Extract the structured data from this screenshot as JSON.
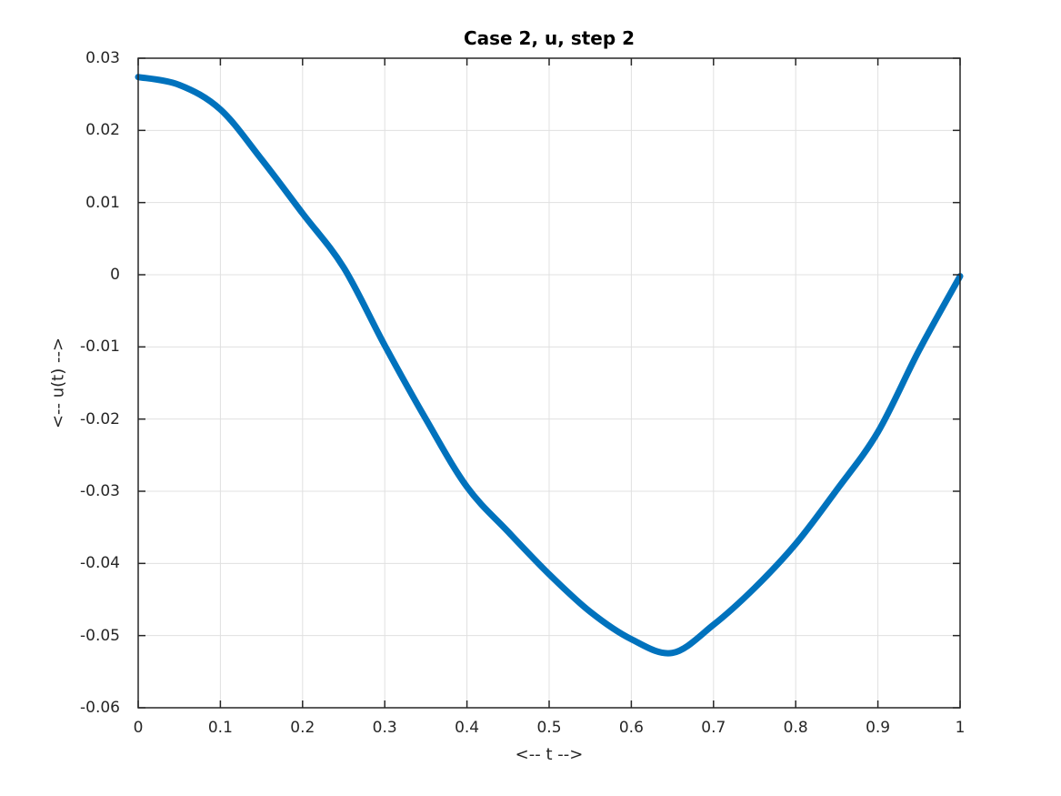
{
  "figure": {
    "background": "#ffffff"
  },
  "chart_data": {
    "type": "line",
    "title": "Case 2, u, step 2",
    "xlabel": "<-- t -->",
    "ylabel": "<-- u(t) -->",
    "xlim": [
      0,
      1
    ],
    "ylim": [
      -0.06,
      0.03
    ],
    "grid": true,
    "legend": "none",
    "box": true,
    "tick_direction": "in",
    "x_ticks": [
      0,
      0.1,
      0.2,
      0.3,
      0.4,
      0.5,
      0.6,
      0.7,
      0.8,
      0.9,
      1
    ],
    "x_tick_labels": [
      "0",
      "0.1",
      "0.2",
      "0.3",
      "0.4",
      "0.5",
      "0.6",
      "0.7",
      "0.8",
      "0.9",
      "1"
    ],
    "y_ticks": [
      0.03,
      0.02,
      0.01,
      0,
      -0.01,
      -0.02,
      -0.03,
      -0.04,
      -0.05,
      -0.06
    ],
    "y_tick_labels": [
      "0.03",
      "0.02",
      "0.01",
      "0",
      "-0.01",
      "-0.02",
      "-0.03",
      "-0.04",
      "-0.05",
      "-0.06"
    ],
    "series": [
      {
        "name": "u(t)",
        "x": [
          0,
          0.05,
          0.1,
          0.15,
          0.2,
          0.25,
          0.3,
          0.35,
          0.4,
          0.45,
          0.5,
          0.55,
          0.6,
          0.65,
          0.7,
          0.75,
          0.8,
          0.85,
          0.9,
          0.95,
          1.0
        ],
        "y": [
          0.0274,
          0.0263,
          0.0229,
          0.016,
          0.0085,
          0.001,
          -0.0098,
          -0.02,
          -0.0294,
          -0.0356,
          -0.0415,
          -0.0467,
          -0.0505,
          -0.0524,
          -0.0485,
          -0.0434,
          -0.0373,
          -0.0298,
          -0.0218,
          -0.0105,
          -0.0002
        ]
      }
    ],
    "annotations": {
      "u_at_0": 0.0274,
      "zero_crossing_t": 0.255,
      "minimum": {
        "t": 0.63,
        "u": -0.0525
      },
      "u_at_1": -0.0002
    },
    "colors": {
      "line": "#0072bd",
      "grid": "#e0e0e0",
      "axis": "#262626",
      "tick_label": "#262626",
      "title": "#000000",
      "background": "#ffffff"
    },
    "line_width": 7
  }
}
